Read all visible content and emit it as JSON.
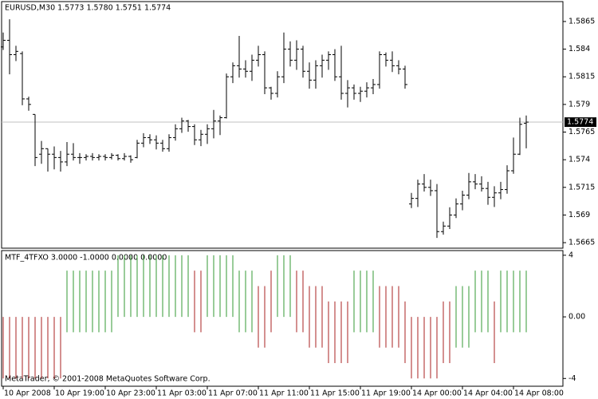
{
  "chart_data": [
    {
      "type": "ohlc",
      "title": "EURUSD,M30  1.5773 1.5780 1.5751 1.5774",
      "categories": [
        "10 Apr 2008",
        null,
        null,
        null,
        null,
        null,
        null,
        null,
        "10 Apr 19:00",
        null,
        null,
        null,
        null,
        null,
        null,
        null,
        "10 Apr 23:00",
        null,
        null,
        null,
        null,
        null,
        null,
        null,
        "11 Apr 03:00",
        null,
        null,
        null,
        null,
        null,
        null,
        null,
        "11 Apr 07:00",
        null,
        null,
        null,
        null,
        null,
        null,
        null,
        "11 Apr 11:00",
        null,
        null,
        null,
        null,
        null,
        null,
        null,
        "11 Apr 15:00",
        null,
        null,
        null,
        null,
        null,
        null,
        null,
        "11 Apr 19:00",
        null,
        null,
        null,
        null,
        null,
        null,
        null,
        "14 Apr 00:00",
        null,
        null,
        null,
        null,
        null,
        null,
        null,
        "14 Apr 04:00",
        null,
        null,
        null,
        null,
        null,
        null,
        null,
        "14 Apr 08:00",
        null,
        null
      ],
      "open": [
        1.5842,
        1.5848,
        1.5835,
        1.5836,
        1.5795,
        1.5781,
        1.5745,
        1.575,
        1.5745,
        1.5742,
        1.5738,
        1.5745,
        1.5742,
        1.5742,
        1.5743,
        1.5742,
        1.5743,
        1.5742,
        1.5744,
        1.5741,
        1.5743,
        1.5742,
        1.5755,
        1.576,
        1.5758,
        1.5755,
        1.575,
        1.576,
        1.5768,
        1.5775,
        1.577,
        1.5758,
        1.5763,
        1.5768,
        1.5775,
        1.5778,
        1.5815,
        1.5825,
        1.5822,
        1.582,
        1.583,
        1.5835,
        1.5805,
        1.58,
        1.5815,
        1.584,
        1.583,
        1.584,
        1.582,
        1.5812,
        1.5825,
        1.583,
        1.5835,
        1.5815,
        1.58,
        1.5805,
        1.58,
        1.5802,
        1.5805,
        1.5808,
        1.5835,
        1.583,
        1.5825,
        1.5822,
        1.57,
        1.5705,
        1.5718,
        1.5715,
        1.5712,
        1.5675,
        1.568,
        1.569,
        1.57,
        1.5708,
        1.572,
        1.5718,
        1.5714,
        1.5706,
        1.571,
        1.5713,
        1.573,
        1.5745,
        1.5773
      ],
      "high": [
        1.5855,
        1.5867,
        1.5843,
        1.5838,
        1.5797,
        1.5781,
        1.5757,
        1.575,
        1.5752,
        1.5748,
        1.5756,
        1.5755,
        1.5746,
        1.5745,
        1.5746,
        1.5745,
        1.5745,
        1.5746,
        1.5745,
        1.5746,
        1.5744,
        1.5758,
        1.5764,
        1.5763,
        1.5762,
        1.5758,
        1.5763,
        1.5772,
        1.5778,
        1.5776,
        1.5772,
        1.5767,
        1.5772,
        1.5785,
        1.578,
        1.5818,
        1.5828,
        1.5852,
        1.583,
        1.5835,
        1.5843,
        1.5838,
        1.5806,
        1.582,
        1.5855,
        1.5847,
        1.5848,
        1.5843,
        1.5828,
        1.583,
        1.5835,
        1.5838,
        1.584,
        1.5843,
        1.5812,
        1.5808,
        1.5806,
        1.581,
        1.5813,
        1.5838,
        1.5837,
        1.5838,
        1.583,
        1.5825,
        1.571,
        1.5722,
        1.5727,
        1.5722,
        1.5718,
        1.5684,
        1.5697,
        1.5705,
        1.5712,
        1.5728,
        1.5727,
        1.5725,
        1.572,
        1.5716,
        1.572,
        1.5735,
        1.576,
        1.5778,
        1.578
      ],
      "low": [
        1.584,
        1.5818,
        1.583,
        1.579,
        1.5785,
        1.5735,
        1.5737,
        1.573,
        1.5732,
        1.573,
        1.5735,
        1.574,
        1.5737,
        1.574,
        1.574,
        1.574,
        1.574,
        1.5741,
        1.574,
        1.574,
        1.5738,
        1.5742,
        1.5752,
        1.5755,
        1.575,
        1.5748,
        1.5748,
        1.5758,
        1.5765,
        1.5766,
        1.5754,
        1.5753,
        1.5755,
        1.576,
        1.5763,
        1.5778,
        1.581,
        1.5815,
        1.5815,
        1.5812,
        1.5825,
        1.58,
        1.5795,
        1.5797,
        1.581,
        1.5825,
        1.5822,
        1.5815,
        1.5805,
        1.5805,
        1.5815,
        1.5822,
        1.5812,
        1.5795,
        1.5788,
        1.5795,
        1.5793,
        1.5797,
        1.58,
        1.5805,
        1.5825,
        1.582,
        1.5818,
        1.5805,
        1.5697,
        1.5698,
        1.5712,
        1.5708,
        1.567,
        1.5673,
        1.5678,
        1.5688,
        1.5695,
        1.5705,
        1.5714,
        1.5712,
        1.57,
        1.5698,
        1.5705,
        1.571,
        1.5728,
        1.5745,
        1.5751
      ],
      "close": [
        1.5848,
        1.5835,
        1.5838,
        1.5795,
        1.579,
        1.5742,
        1.575,
        1.5745,
        1.5742,
        1.5738,
        1.5745,
        1.5742,
        1.5742,
        1.5743,
        1.5742,
        1.5743,
        1.5742,
        1.5744,
        1.5741,
        1.5743,
        1.574,
        1.5755,
        1.576,
        1.5758,
        1.5755,
        1.575,
        1.576,
        1.5768,
        1.5775,
        1.577,
        1.5758,
        1.5763,
        1.5768,
        1.5775,
        1.5778,
        1.5815,
        1.5825,
        1.5822,
        1.582,
        1.583,
        1.5835,
        1.5805,
        1.58,
        1.5815,
        1.584,
        1.583,
        1.584,
        1.582,
        1.5812,
        1.5825,
        1.583,
        1.5835,
        1.5815,
        1.58,
        1.5805,
        1.58,
        1.5802,
        1.5805,
        1.5808,
        1.5835,
        1.583,
        1.5825,
        1.5822,
        1.5808,
        1.5705,
        1.5718,
        1.5715,
        1.5712,
        1.5675,
        1.568,
        1.569,
        1.57,
        1.5708,
        1.572,
        1.5718,
        1.5714,
        1.5706,
        1.571,
        1.5713,
        1.573,
        1.5745,
        1.5772,
        1.5774
      ],
      "color": "#000000",
      "current_price": 1.5774,
      "current_price_color": "#c0c0c0",
      "ylim": [
        1.566,
        1.5883
      ],
      "yticks": [
        1.5865,
        1.584,
        1.5815,
        1.579,
        1.5765,
        1.574,
        1.5715,
        1.569,
        1.5665
      ]
    },
    {
      "type": "range-histogram",
      "title": "MTF_4TFXO 3.0000 -1.0000 0.0000 0.0000",
      "upper": [
        0,
        0,
        0,
        0,
        0,
        0,
        0,
        0,
        0,
        0,
        3,
        3,
        3,
        3,
        3,
        3,
        3,
        3,
        4,
        4,
        4,
        4,
        4,
        4,
        4,
        4,
        4,
        4,
        4,
        4,
        3,
        3,
        4,
        4,
        4,
        4,
        4,
        3,
        3,
        3,
        2,
        2,
        3,
        4,
        4,
        4,
        3,
        3,
        2,
        2,
        2,
        1,
        1,
        1,
        1,
        3,
        3,
        3,
        3,
        2,
        2,
        2,
        2,
        1,
        0,
        0,
        0,
        0,
        0,
        1,
        1,
        2,
        2,
        2,
        3,
        3,
        3,
        1,
        3,
        3,
        3,
        3,
        3
      ],
      "lower": [
        -4,
        -4,
        -4,
        -4,
        -4,
        -4,
        -4,
        -4,
        -4,
        -4,
        -1,
        -1,
        -1,
        -1,
        -1,
        -1,
        -1,
        -1,
        0,
        0,
        0,
        0,
        0,
        0,
        0,
        0,
        0,
        0,
        0,
        0,
        -1,
        -1,
        0,
        0,
        0,
        0,
        0,
        -1,
        -1,
        -1,
        -2,
        -2,
        -1,
        0,
        0,
        0,
        -1,
        -1,
        -2,
        -2,
        -2,
        -3,
        -3,
        -3,
        -3,
        -1,
        -1,
        -1,
        -1,
        -2,
        -2,
        -2,
        -2,
        -3,
        -4,
        -4,
        -4,
        -4,
        -4,
        -3,
        -3,
        -2,
        -2,
        -2,
        -1,
        -1,
        -1,
        -3,
        -1,
        -1,
        -1,
        -1,
        -1
      ],
      "colors": [
        "#aa2222",
        "#aa2222",
        "#aa2222",
        "#aa2222",
        "#aa2222",
        "#aa2222",
        "#aa2222",
        "#aa2222",
        "#aa2222",
        "#aa2222",
        "#339933",
        "#339933",
        "#339933",
        "#339933",
        "#339933",
        "#339933",
        "#339933",
        "#339933",
        "#339933",
        "#339933",
        "#339933",
        "#339933",
        "#339933",
        "#339933",
        "#339933",
        "#339933",
        "#339933",
        "#339933",
        "#339933",
        "#339933",
        "#aa2222",
        "#aa2222",
        "#339933",
        "#339933",
        "#339933",
        "#339933",
        "#339933",
        "#339933",
        "#339933",
        "#339933",
        "#aa2222",
        "#aa2222",
        "#aa2222",
        "#339933",
        "#339933",
        "#339933",
        "#aa2222",
        "#aa2222",
        "#aa2222",
        "#aa2222",
        "#aa2222",
        "#aa2222",
        "#aa2222",
        "#aa2222",
        "#aa2222",
        "#339933",
        "#339933",
        "#339933",
        "#339933",
        "#aa2222",
        "#aa2222",
        "#aa2222",
        "#aa2222",
        "#aa2222",
        "#aa2222",
        "#aa2222",
        "#aa2222",
        "#aa2222",
        "#aa2222",
        "#aa2222",
        "#aa2222",
        "#339933",
        "#339933",
        "#339933",
        "#339933",
        "#339933",
        "#339933",
        "#aa2222",
        "#339933",
        "#339933",
        "#339933",
        "#339933",
        "#339933"
      ],
      "ylim": [
        -4.4,
        4.2
      ],
      "yticks": [
        4,
        {
          "value": 0,
          "label": "0.00"
        },
        -4
      ]
    }
  ],
  "watermark": "MetaTrader, © 2001-2008 MetaQuotes Software Corp."
}
